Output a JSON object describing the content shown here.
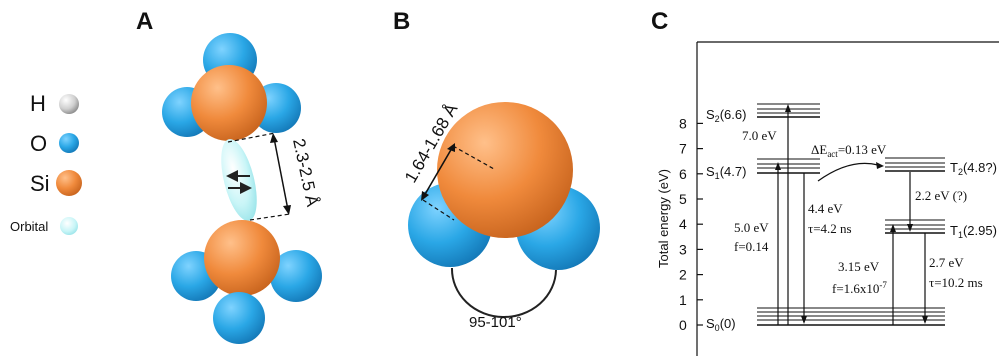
{
  "panels": {
    "a": "A",
    "b": "B",
    "c": "C"
  },
  "legend": {
    "items": [
      {
        "symbol": "H",
        "color": "#d9d9d9"
      },
      {
        "symbol": "O",
        "color": "#2aa7e6"
      },
      {
        "symbol": "Si",
        "color": "#f08a3c"
      },
      {
        "symbol": "Orbital",
        "color": "#bff3f5"
      }
    ]
  },
  "panel_a": {
    "distance": "2.3-2.5 Å"
  },
  "panel_b": {
    "bond_length": "1.64-1.68 Å",
    "angle": "95-101°"
  },
  "panel_c": {
    "y_axis_title": "Total energy  (eV)",
    "ticks": [
      "0",
      "1",
      "2",
      "3",
      "4",
      "5",
      "6",
      "7",
      "8"
    ],
    "levels": {
      "s2": "S2(6.6)",
      "s1": "S1(4.7)",
      "s0": "S0(0)",
      "t2": "T2(4.8?)",
      "t1": "T1(2.95)"
    },
    "labels": {
      "s2_excitation": "7.0 eV",
      "activation": "ΔEact=0.13 eV",
      "s1_absorption": "5.0 eV",
      "s1_osc": "f=0.14",
      "s1_emission": "4.4 eV",
      "s1_lifetime": "τ=4.2 ns",
      "t2_t1": "2.2 eV (?)",
      "t1_absorption": "3.15 eV",
      "t1_osc": "f=1.6x10-7",
      "t1_emission": "2.7 eV",
      "t1_lifetime": "τ=10.2 ms"
    }
  }
}
